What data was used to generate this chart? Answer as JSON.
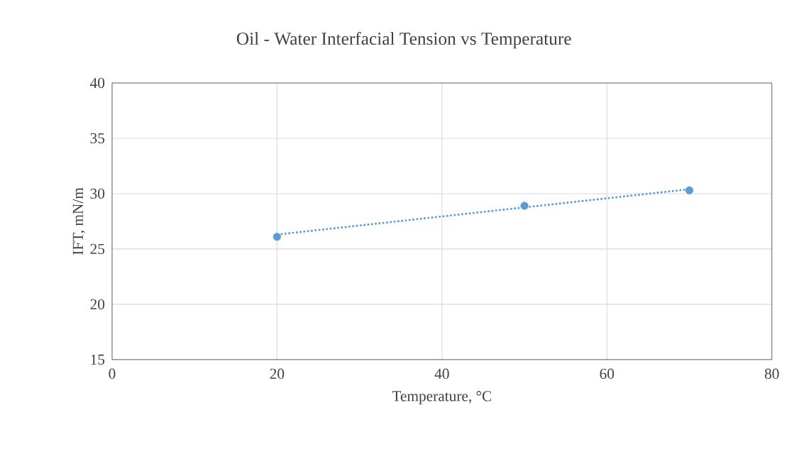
{
  "chart_data": {
    "type": "scatter",
    "title": "Oil - Water Interfacial Tension vs Temperature",
    "xlabel": "Temperature, °C",
    "ylabel": "IFT, mN/m",
    "series": [
      {
        "color": "#5b9bd5",
        "marker": "circle",
        "x": [
          20,
          50,
          70
        ],
        "values": [
          26.1,
          28.9,
          30.3
        ]
      },
      {
        "type": "line",
        "color": "#5b9bd5",
        "marker": "none",
        "line_style": "dotted",
        "x": [
          20,
          70
        ],
        "values": [
          26.3,
          30.4
        ]
      }
    ],
    "xlim": [
      0,
      80
    ],
    "xticks": [
      0,
      20,
      40,
      60,
      80
    ],
    "ylim": [
      15,
      40
    ],
    "yticks": [
      15,
      20,
      25,
      30,
      35,
      40
    ],
    "grid": true
  }
}
